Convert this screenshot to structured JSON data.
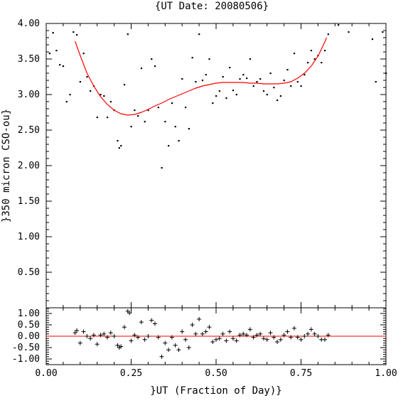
{
  "chart_data": [
    {
      "type": "scatter",
      "panel": "main",
      "title": "{UT Date: 20080506}",
      "xlabel": "",
      "ylabel": "}350 micron CSO-ou}",
      "xlim": [
        0.0,
        1.0
      ],
      "ylim": [
        0.0,
        4.0
      ],
      "y_ticks": [
        0.5,
        1.0,
        1.5,
        2.0,
        2.5,
        3.0,
        3.5,
        4.0
      ],
      "y_tick_labels": [
        "0.50",
        "1.00",
        "1.50",
        "2.00",
        "2.50",
        "3.00",
        "3.50",
        "4.00"
      ],
      "point_color": "#000000",
      "fit_color": "#ff0000",
      "series": [
        {
          "marker": "dot",
          "x": [
            0.01,
            0.02,
            0.03,
            0.04,
            0.05,
            0.06,
            0.07,
            0.08,
            0.09,
            0.1,
            0.11,
            0.12,
            0.13,
            0.14,
            0.15,
            0.16,
            0.17,
            0.18,
            0.19,
            0.2,
            0.21,
            0.215,
            0.22,
            0.23,
            0.24,
            0.25,
            0.26,
            0.27,
            0.28,
            0.29,
            0.3,
            0.31,
            0.32,
            0.33,
            0.34,
            0.35,
            0.36,
            0.37,
            0.38,
            0.39,
            0.4,
            0.41,
            0.42,
            0.43,
            0.44,
            0.45,
            0.46,
            0.47,
            0.48,
            0.49,
            0.5,
            0.51,
            0.52,
            0.53,
            0.54,
            0.55,
            0.56,
            0.57,
            0.58,
            0.59,
            0.6,
            0.61,
            0.62,
            0.63,
            0.64,
            0.65,
            0.66,
            0.67,
            0.68,
            0.69,
            0.7,
            0.71,
            0.72,
            0.73,
            0.74,
            0.75,
            0.76,
            0.77,
            0.78,
            0.79,
            0.8,
            0.81,
            0.82,
            0.83,
            0.86,
            0.89,
            0.96,
            0.97,
            0.99,
            1.0
          ],
          "y": [
            3.58,
            3.87,
            3.62,
            3.42,
            3.4,
            2.9,
            3.0,
            3.88,
            3.84,
            3.18,
            3.58,
            3.25,
            3.05,
            3.12,
            2.68,
            3.0,
            2.98,
            2.68,
            2.9,
            2.78,
            2.35,
            2.25,
            2.28,
            3.14,
            3.85,
            2.55,
            2.78,
            2.7,
            3.37,
            2.62,
            2.78,
            3.5,
            3.4,
            2.82,
            1.97,
            2.62,
            2.28,
            2.88,
            2.55,
            2.35,
            3.22,
            2.82,
            2.52,
            3.52,
            3.18,
            3.85,
            3.2,
            3.28,
            3.5,
            2.88,
            2.98,
            3.05,
            3.25,
            2.95,
            3.38,
            3.06,
            3.0,
            3.22,
            3.28,
            3.23,
            3.5,
            3.12,
            3.18,
            3.22,
            3.05,
            3.0,
            3.3,
            3.1,
            2.92,
            2.98,
            3.2,
            3.35,
            3.12,
            3.58,
            3.18,
            3.12,
            3.28,
            3.45,
            3.62,
            3.5,
            3.55,
            3.45,
            3.62,
            3.85,
            3.98,
            3.88,
            3.78,
            3.18,
            3.88,
            3.3
          ]
        },
        {
          "marker": "line",
          "x": [
            0.085,
            0.1,
            0.12,
            0.14,
            0.16,
            0.18,
            0.2,
            0.22,
            0.24,
            0.26,
            0.28,
            0.3,
            0.32,
            0.34,
            0.36,
            0.38,
            0.4,
            0.42,
            0.44,
            0.46,
            0.48,
            0.5,
            0.52,
            0.54,
            0.56,
            0.58,
            0.6,
            0.62,
            0.64,
            0.66,
            0.68,
            0.7,
            0.72,
            0.74,
            0.76,
            0.78,
            0.8,
            0.82,
            0.825
          ],
          "y": [
            3.75,
            3.55,
            3.3,
            3.12,
            2.97,
            2.86,
            2.78,
            2.73,
            2.71,
            2.72,
            2.75,
            2.79,
            2.84,
            2.88,
            2.93,
            2.97,
            3.01,
            3.05,
            3.09,
            3.12,
            3.14,
            3.16,
            3.17,
            3.17,
            3.17,
            3.17,
            3.16,
            3.16,
            3.15,
            3.15,
            3.15,
            3.16,
            3.18,
            3.23,
            3.3,
            3.4,
            3.54,
            3.74,
            3.8
          ]
        }
      ]
    },
    {
      "type": "scatter",
      "panel": "residuals",
      "title": "",
      "xlabel": "}UT (Fraction of Day)}",
      "ylabel": "",
      "xlim": [
        0.0,
        1.0
      ],
      "ylim": [
        -1.25,
        1.25
      ],
      "x_ticks": [
        0.0,
        0.25,
        0.5,
        0.75,
        1.0
      ],
      "x_tick_labels": [
        "0.00",
        "0.25",
        "0.50",
        "0.75",
        "1.00"
      ],
      "y_ticks": [
        1.0,
        0.5,
        0.0,
        -0.5,
        -1.0
      ],
      "y_tick_labels": [
        "1.00",
        "0.50",
        "0.00",
        "-0.50",
        "-1.00"
      ],
      "point_color": "#000000",
      "zero_line_color": "#ff0000",
      "series": [
        {
          "marker": "plus",
          "x": [
            0.085,
            0.09,
            0.1,
            0.11,
            0.12,
            0.13,
            0.14,
            0.15,
            0.16,
            0.17,
            0.18,
            0.19,
            0.2,
            0.21,
            0.215,
            0.22,
            0.23,
            0.24,
            0.245,
            0.25,
            0.26,
            0.27,
            0.28,
            0.29,
            0.3,
            0.31,
            0.32,
            0.33,
            0.34,
            0.35,
            0.36,
            0.37,
            0.38,
            0.39,
            0.4,
            0.41,
            0.42,
            0.43,
            0.44,
            0.45,
            0.46,
            0.47,
            0.48,
            0.49,
            0.5,
            0.51,
            0.52,
            0.53,
            0.54,
            0.55,
            0.56,
            0.57,
            0.58,
            0.59,
            0.6,
            0.61,
            0.62,
            0.63,
            0.64,
            0.65,
            0.66,
            0.67,
            0.68,
            0.69,
            0.7,
            0.71,
            0.72,
            0.73,
            0.74,
            0.75,
            0.76,
            0.77,
            0.78,
            0.79,
            0.8,
            0.81,
            0.82,
            0.83
          ],
          "y": [
            0.15,
            0.25,
            -0.3,
            0.2,
            0.0,
            -0.1,
            0.05,
            -0.35,
            0.05,
            0.1,
            -0.05,
            0.15,
            0.0,
            -0.4,
            -0.5,
            -0.45,
            0.4,
            1.1,
            1.02,
            -0.2,
            0.05,
            -0.05,
            0.62,
            -0.15,
            0.0,
            0.7,
            0.55,
            -0.05,
            -0.9,
            -0.3,
            -0.6,
            -0.05,
            -0.4,
            -0.6,
            0.2,
            -0.15,
            -0.5,
            0.5,
            0.1,
            0.75,
            0.1,
            0.2,
            0.4,
            -0.25,
            -0.15,
            -0.1,
            0.1,
            -0.2,
            0.2,
            -0.1,
            -0.2,
            0.05,
            0.1,
            0.05,
            0.3,
            -0.05,
            0.05,
            0.1,
            -0.1,
            -0.15,
            0.15,
            -0.05,
            -0.25,
            -0.15,
            0.05,
            0.2,
            -0.05,
            0.35,
            -0.05,
            -0.15,
            0.0,
            0.1,
            0.3,
            0.1,
            0.0,
            -0.15,
            -0.15,
            0.05
          ]
        }
      ]
    }
  ]
}
